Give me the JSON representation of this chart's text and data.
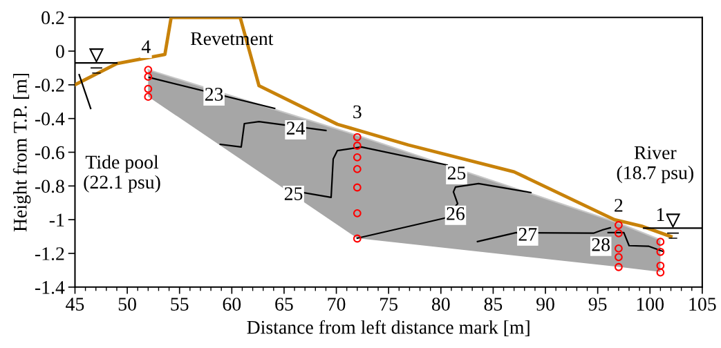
{
  "chart_data": {
    "type": "line",
    "xlabel": "Distance from left distance mark [m]",
    "ylabel": "Height from T.P. [m]",
    "xlim": [
      45,
      105
    ],
    "xticks": [
      45,
      50,
      55,
      60,
      65,
      70,
      75,
      80,
      85,
      90,
      95,
      100,
      105
    ],
    "ylim": [
      -1.4,
      0.2
    ],
    "yticks": [
      {
        "value": 0.2,
        "label": "0.2"
      },
      {
        "value": 0,
        "label": "0"
      },
      {
        "value": -0.2,
        "label": "-0.2"
      },
      {
        "value": -0.4,
        "label": "-0.4"
      },
      {
        "value": -0.6,
        "label": "-0.6"
      },
      {
        "value": -0.8,
        "label": "-0.8"
      },
      {
        "value": -1,
        "label": "-1"
      },
      {
        "value": -1.2,
        "label": "-1.2"
      },
      {
        "value": -1.4,
        "label": "-1.4"
      }
    ],
    "grid": false,
    "legend": false,
    "series": [
      {
        "color": "#c8c8c8",
        "x": [
          52,
          72,
          97,
          101
        ],
        "lower": [
          -0.27,
          -1.11,
          -1.28,
          -1.31
        ],
        "upper": [
          -0.11,
          -0.5,
          -1.02,
          -1.12
        ],
        "values": [
          -0.11,
          -0.5,
          -1.02,
          -1.12
        ]
      },
      {
        "type": "line",
        "color": "#000000",
        "x": [
          52.1,
          64.1
        ],
        "values": [
          -0.156,
          -0.34
        ]
      },
      {
        "type": "line",
        "color": "#000000",
        "x": [
          58.9,
          60.9,
          61.2,
          62.6,
          69.0
        ],
        "values": [
          -0.553,
          -0.569,
          -0.43,
          -0.418,
          -0.471
        ]
      },
      {
        "type": "line",
        "color": "#000000",
        "x": [
          66.8,
          69.5,
          69.7,
          70.1,
          72.4,
          80.6
        ],
        "values": [
          -0.839,
          -0.868,
          -0.64,
          -0.59,
          -0.569,
          -0.676
        ]
      },
      {
        "type": "line",
        "color": "#000000",
        "x": [
          72,
          80.4,
          81.6,
          81.2,
          81.4,
          83.6,
          88.6
        ],
        "values": [
          -1.11,
          -0.99,
          -0.905,
          -0.835,
          -0.806,
          -0.786,
          -0.839
        ]
      },
      {
        "type": "line",
        "color": "#000000",
        "x": [
          83.5,
          87.2,
          94.6,
          95.5,
          96.2
        ],
        "values": [
          -1.13,
          -1.077,
          -1.08,
          -1.06,
          -1.048
        ]
      },
      {
        "type": "line",
        "color": "#000000",
        "x": [
          96.0,
          97.5,
          98.0,
          99.9,
          101.2
        ],
        "values": [
          -1.077,
          -1.077,
          -1.154,
          -1.158,
          -1.187
        ]
      },
      {
        "type": "line",
        "color": "#c8820a",
        "x": [
          45,
          49.0,
          53.6,
          54.2,
          60.8,
          62.6,
          70.1,
          76.9,
          87.0,
          96.6,
          99.3,
          102.0
        ],
        "values": [
          -0.2,
          -0.074,
          -0.02,
          0.2,
          0.2,
          -0.205,
          -0.434,
          -0.557,
          -0.716,
          -1.0,
          -1.04,
          -1.1
        ]
      },
      {
        "type": "line",
        "color": "#000000",
        "x": [
          45.1,
          49.0
        ],
        "values": [
          -0.07,
          -0.07
        ]
      },
      {
        "type": "line",
        "color": "#000000",
        "x": [
          99.4,
          105
        ],
        "values": [
          -1.05,
          -1.05
        ]
      },
      {
        "type": "line",
        "color": "#000000",
        "x": [
          45.4,
          46.5
        ],
        "values": [
          -0.14,
          -0.34
        ]
      },
      {
        "type": "scatter",
        "color": "#ff0000",
        "marker": "circle",
        "x": [
          52,
          52,
          52,
          52,
          72,
          72,
          72,
          72,
          72,
          72,
          72,
          97,
          97,
          97,
          97,
          97,
          101,
          101,
          101,
          101
        ],
        "values": [
          -0.111,
          -0.152,
          -0.224,
          -0.271,
          -0.51,
          -0.561,
          -0.63,
          -0.7,
          -0.809,
          -0.962,
          -1.112,
          -1.032,
          -1.081,
          -1.171,
          -1.222,
          -1.281,
          -1.131,
          -1.191,
          -1.273,
          -1.313
        ]
      }
    ],
    "annotations": [
      "Revetment",
      "Tide pool\n(22.1 psu)",
      "River\n(18.7 psu)",
      {
        "text": "4",
        "x": 51.8,
        "y": 0.016
      },
      {
        "text": "3",
        "x": 72.0,
        "y": -0.37
      },
      {
        "text": "2",
        "x": 97.0,
        "y": -0.925
      },
      {
        "text": "1",
        "x": 101.0,
        "y": -0.98
      },
      {
        "text": "23",
        "x": 58.3,
        "y": -0.266
      },
      {
        "text": "24",
        "x": 66.1,
        "y": -0.467
      },
      {
        "text": "25",
        "x": 65.9,
        "y": -0.856
      },
      {
        "text": "25",
        "x": 81.5,
        "y": -0.733
      },
      {
        "text": "26",
        "x": 81.4,
        "y": -0.974
      },
      {
        "text": "27",
        "x": 88.3,
        "y": -1.097
      },
      {
        "text": "28",
        "x": 95.3,
        "y": -1.158
      }
    ]
  }
}
